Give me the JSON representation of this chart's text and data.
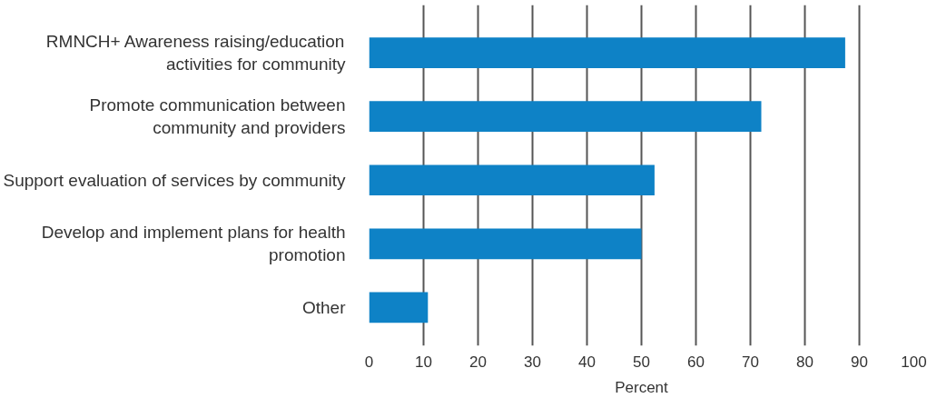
{
  "chart_data": {
    "type": "bar",
    "orientation": "horizontal",
    "xlabel": "Percent",
    "categories": [
      "RMNCH+ Awareness raising/education\nactivities for community",
      "Promote communication between\ncommunity and providers",
      "Support evaluation of services by community",
      "Develop and implement plans for health\npromotion",
      "Other"
    ],
    "values": [
      87.4,
      72.0,
      52.4,
      50.0,
      10.8
    ],
    "color": "#0e82c6",
    "xlim": [
      0,
      100
    ],
    "xticks": [
      0,
      10,
      20,
      30,
      40,
      50,
      60,
      70,
      80,
      90,
      100
    ],
    "grid": "x"
  }
}
